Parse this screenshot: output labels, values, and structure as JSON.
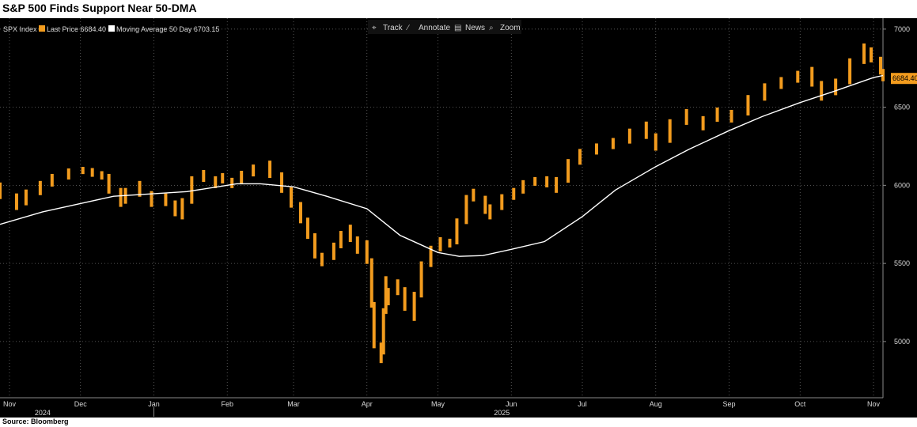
{
  "title": "S&P 500 Finds Support Near 50-DMA",
  "source": "Source: Bloomberg",
  "colors": {
    "background": "#000000",
    "price": "#f39c1e",
    "moving_average": "#ffffff",
    "grid": "#6a6a6a",
    "text": "#d8d8d8"
  },
  "legend": {
    "index": "SPX Index",
    "price_label": "Last Price 6684.40",
    "ma_label": "Moving Average 50 Day 6703.15"
  },
  "toolbar": [
    {
      "icon": "track-icon",
      "glyph": "⌖",
      "label": "Track"
    },
    {
      "icon": "annotate-icon",
      "glyph": "∕",
      "label": "Annotate"
    },
    {
      "icon": "news-icon",
      "glyph": "▤",
      "label": "News"
    },
    {
      "icon": "zoom-icon",
      "glyph": "⌕",
      "label": "Zoom"
    }
  ],
  "chart_data": {
    "type": "bar",
    "ticker": "SPX Index",
    "y_ticks": [
      "7000",
      "6500",
      "6000",
      "5500",
      "5000"
    ],
    "ylim": [
      4640,
      7070
    ],
    "x_range": [
      "2024-10-28",
      "2025-11-05"
    ],
    "x_ticks": [
      {
        "label": "Nov",
        "date": "2024-11-01"
      },
      {
        "label": "Dec",
        "date": "2024-12-01"
      },
      {
        "label": "Jan",
        "date": "2025-01-01"
      },
      {
        "label": "Feb",
        "date": "2025-02-01"
      },
      {
        "label": "Mar",
        "date": "2025-03-01"
      },
      {
        "label": "Apr",
        "date": "2025-04-01"
      },
      {
        "label": "May",
        "date": "2025-05-01"
      },
      {
        "label": "Jun",
        "date": "2025-06-01"
      },
      {
        "label": "Jul",
        "date": "2025-07-01"
      },
      {
        "label": "Aug",
        "date": "2025-08-01"
      },
      {
        "label": "Sep",
        "date": "2025-09-01"
      },
      {
        "label": "Oct",
        "date": "2025-10-01"
      },
      {
        "label": "Nov",
        "date": "2025-11-01"
      }
    ],
    "year_labels": [
      {
        "label": "2024",
        "date": "2024-11-15"
      },
      {
        "label": "2025",
        "date": "2025-05-28"
      }
    ],
    "year_divider": "2025-01-01",
    "last_price_label": "6684.40",
    "series": [
      {
        "name": "Last Price",
        "style": "hlc-bars",
        "points": [
          [
            "2024-10-28",
            6000
          ],
          [
            "2024-11-04",
            5860
          ],
          [
            "2024-11-08",
            5920
          ],
          [
            "2024-11-14",
            5990
          ],
          [
            "2024-11-19",
            6030
          ],
          [
            "2024-11-26",
            6080
          ],
          [
            "2024-12-02",
            6100
          ],
          [
            "2024-12-06",
            6085
          ],
          [
            "2024-12-10",
            6060
          ],
          [
            "2024-12-13",
            6050
          ],
          [
            "2024-12-18",
            5880
          ],
          [
            "2024-12-20",
            5920
          ],
          [
            "2024-12-26",
            6010
          ],
          [
            "2024-12-31",
            5880
          ],
          [
            "2025-01-06",
            5930
          ],
          [
            "2025-01-10",
            5840
          ],
          [
            "2025-01-13",
            5800
          ],
          [
            "2025-01-17",
            6000
          ],
          [
            "2025-01-22",
            6080
          ],
          [
            "2025-01-27",
            6000
          ],
          [
            "2025-01-30",
            6060
          ],
          [
            "2025-02-03",
            6000
          ],
          [
            "2025-02-07",
            6060
          ],
          [
            "2025-02-12",
            6090
          ],
          [
            "2025-02-19",
            6140
          ],
          [
            "2025-02-24",
            5990
          ],
          [
            "2025-02-28",
            5950
          ],
          [
            "2025-03-04",
            5800
          ],
          [
            "2025-03-07",
            5750
          ],
          [
            "2025-03-10",
            5600
          ],
          [
            "2025-03-13",
            5500
          ],
          [
            "2025-03-18",
            5580
          ],
          [
            "2025-03-21",
            5650
          ],
          [
            "2025-03-25",
            5730
          ],
          [
            "2025-03-28",
            5580
          ],
          [
            "2025-04-01",
            5630
          ],
          [
            "2025-04-03",
            5400
          ],
          [
            "2025-04-04",
            5070
          ],
          [
            "2025-04-07",
            4880
          ],
          [
            "2025-04-08",
            4990
          ],
          [
            "2025-04-09",
            5400
          ],
          [
            "2025-04-10",
            5250
          ],
          [
            "2025-04-14",
            5380
          ],
          [
            "2025-04-17",
            5280
          ],
          [
            "2025-04-21",
            5150
          ],
          [
            "2025-04-24",
            5450
          ],
          [
            "2025-04-28",
            5540
          ],
          [
            "2025-05-02",
            5650
          ],
          [
            "2025-05-06",
            5620
          ],
          [
            "2025-05-09",
            5660
          ],
          [
            "2025-05-13",
            5880
          ],
          [
            "2025-05-16",
            5960
          ],
          [
            "2025-05-21",
            5870
          ],
          [
            "2025-05-23",
            5800
          ],
          [
            "2025-05-28",
            5920
          ],
          [
            "2025-06-02",
            5930
          ],
          [
            "2025-06-06",
            6000
          ],
          [
            "2025-06-11",
            6030
          ],
          [
            "2025-06-16",
            6040
          ],
          [
            "2025-06-20",
            5970
          ],
          [
            "2025-06-25",
            6100
          ],
          [
            "2025-06-30",
            6200
          ],
          [
            "2025-07-07",
            6230
          ],
          [
            "2025-07-14",
            6270
          ],
          [
            "2025-07-21",
            6300
          ],
          [
            "2025-07-28",
            6390
          ],
          [
            "2025-08-01",
            6240
          ],
          [
            "2025-08-07",
            6340
          ],
          [
            "2025-08-14",
            6470
          ],
          [
            "2025-08-21",
            6370
          ],
          [
            "2025-08-27",
            6480
          ],
          [
            "2025-09-02",
            6420
          ],
          [
            "2025-09-09",
            6510
          ],
          [
            "2025-09-16",
            6610
          ],
          [
            "2025-09-23",
            6660
          ],
          [
            "2025-09-30",
            6690
          ],
          [
            "2025-10-06",
            6740
          ],
          [
            "2025-10-10",
            6560
          ],
          [
            "2025-10-16",
            6630
          ],
          [
            "2025-10-22",
            6700
          ],
          [
            "2025-10-28",
            6890
          ],
          [
            "2025-10-31",
            6840
          ],
          [
            "2025-11-04",
            6770
          ],
          [
            "2025-11-05",
            6684.4
          ]
        ]
      },
      {
        "name": "Moving Average 50 Day",
        "style": "line",
        "points": [
          [
            "2024-10-28",
            5750
          ],
          [
            "2024-11-15",
            5830
          ],
          [
            "2024-12-15",
            5930
          ],
          [
            "2025-01-15",
            5960
          ],
          [
            "2025-02-05",
            6010
          ],
          [
            "2025-02-15",
            6010
          ],
          [
            "2025-03-01",
            5990
          ],
          [
            "2025-03-15",
            5930
          ],
          [
            "2025-04-01",
            5850
          ],
          [
            "2025-04-15",
            5680
          ],
          [
            "2025-05-01",
            5570
          ],
          [
            "2025-05-10",
            5545
          ],
          [
            "2025-05-20",
            5550
          ],
          [
            "2025-06-01",
            5590
          ],
          [
            "2025-06-15",
            5640
          ],
          [
            "2025-07-01",
            5800
          ],
          [
            "2025-07-15",
            5970
          ],
          [
            "2025-08-01",
            6120
          ],
          [
            "2025-08-15",
            6230
          ],
          [
            "2025-09-01",
            6350
          ],
          [
            "2025-09-15",
            6440
          ],
          [
            "2025-10-01",
            6530
          ],
          [
            "2025-10-15",
            6600
          ],
          [
            "2025-11-01",
            6690
          ],
          [
            "2025-11-05",
            6703.15
          ]
        ]
      }
    ]
  }
}
